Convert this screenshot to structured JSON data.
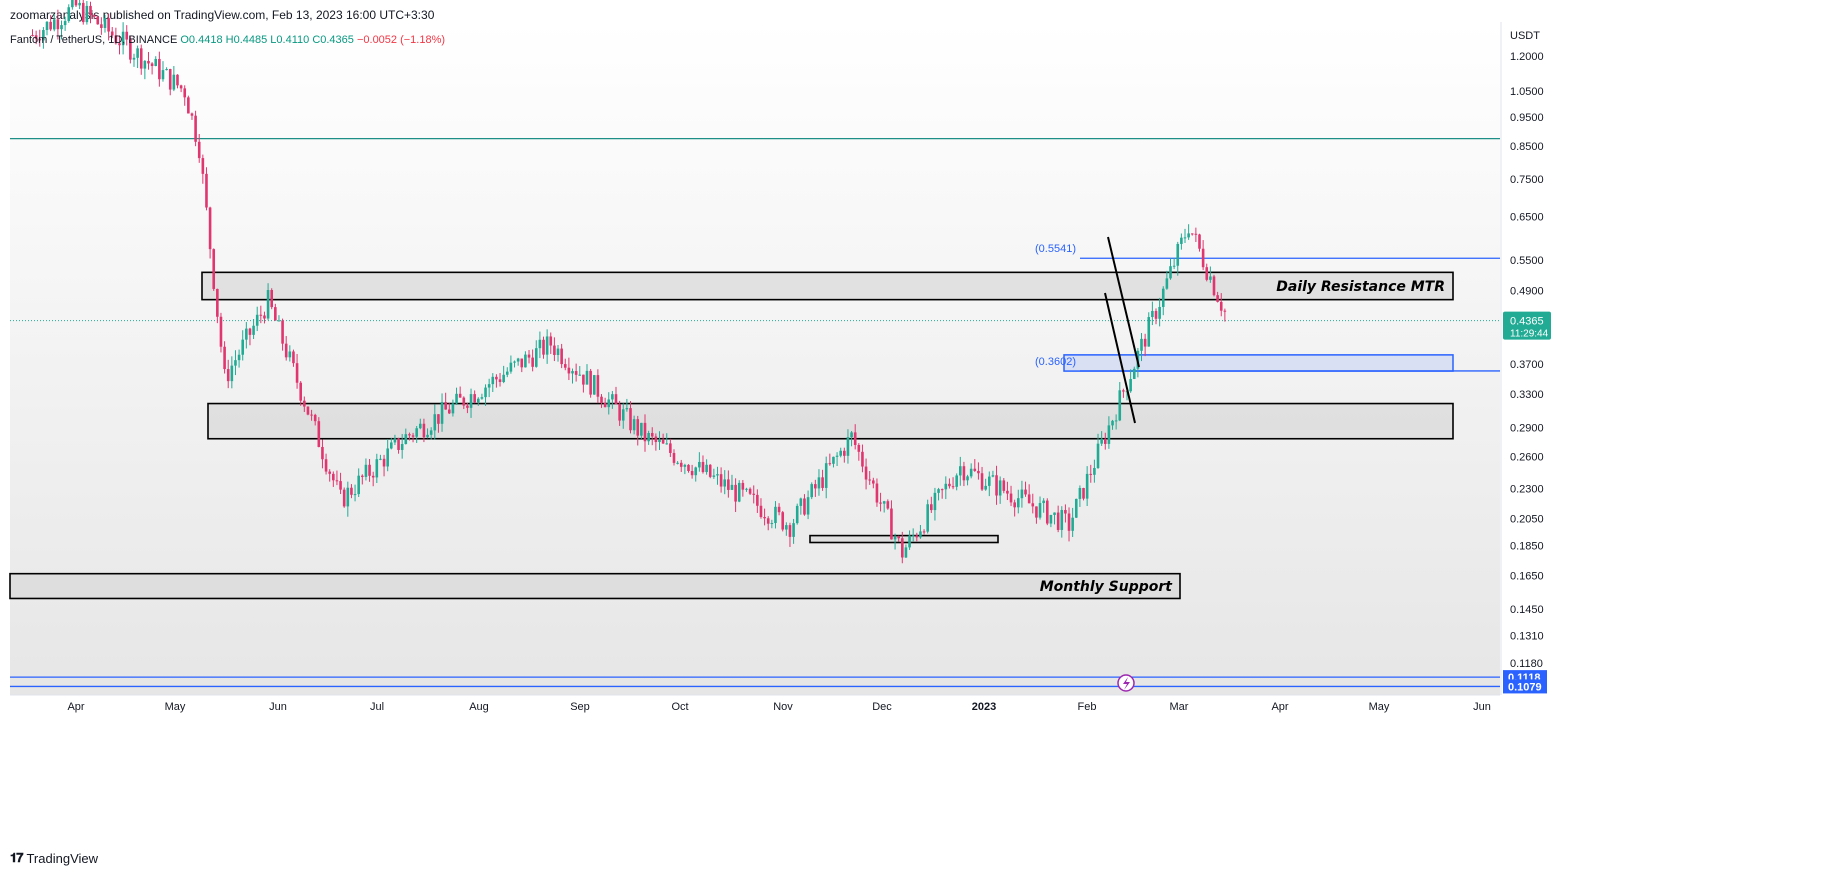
{
  "header": {
    "published_by": "zoomarzanalysis published on TradingView.com, Feb 13, 2023 16:00 UTC+3:30"
  },
  "legend": {
    "symbol": "Fantom / TetherUS, 1D, BINANCE",
    "open": "O0.4418",
    "high": "H0.4485",
    "low": "L0.4110",
    "close": "C0.4365",
    "change": "−0.0052 (−1.18%)"
  },
  "footer": {
    "brand": "TradingView"
  },
  "colors": {
    "up": "#22ab94",
    "down": "#e0356e",
    "teal_line": "#1d8f86",
    "blue_line": "#2962ff",
    "zone_fill": "#d9d9d9"
  },
  "chart_data": {
    "type": "candlestick",
    "symbol": "Fantom / TetherUS",
    "interval": "1D",
    "exchange": "BINANCE",
    "y_scale": "log",
    "y_unit": "USDT",
    "yticks": [
      "1.2000",
      "1.0500",
      "0.9500",
      "0.8500",
      "0.7500",
      "0.6500",
      "0.5500",
      "0.4900",
      "0.3700",
      "0.3300",
      "0.2900",
      "0.2600",
      "0.2300",
      "0.2050",
      "0.1850",
      "0.1650",
      "0.1450",
      "0.1310",
      "0.1180"
    ],
    "xticks": [
      "Apr",
      "May",
      "Jun",
      "Jul",
      "Aug",
      "Sep",
      "Oct",
      "Nov",
      "Dec",
      "2023",
      "Feb",
      "Mar",
      "Apr",
      "May",
      "Jun"
    ],
    "last_price": "0.4365",
    "countdown": "11:29:44",
    "price_badges": [
      "0.1118",
      "0.1079"
    ],
    "horizontal_lines": [
      {
        "price": 0.875,
        "color": "teal"
      },
      {
        "price": 0.5541,
        "color": "blue",
        "label": "(0.5541)"
      },
      {
        "price": 0.3602,
        "color": "blue",
        "label": "(0.3602)"
      },
      {
        "price": 0.1118,
        "color": "blue"
      },
      {
        "price": 0.1079,
        "color": "blue"
      }
    ],
    "zones": [
      {
        "label": "Daily Resistance MTR",
        "top": 0.525,
        "bottom": 0.473
      },
      {
        "label": "",
        "top": 0.318,
        "bottom": 0.278
      },
      {
        "label": "",
        "top": 0.192,
        "bottom": 0.187
      },
      {
        "label": "Monthly Support",
        "top": 0.166,
        "bottom": 0.151
      },
      {
        "label": "",
        "top": 0.383,
        "bottom": 0.36
      }
    ],
    "pattern": "falling wedge",
    "candles_approx": [
      {
        "date": "2022-03-20",
        "close": 1.3
      },
      {
        "date": "2022-04-01",
        "close": 1.45
      },
      {
        "date": "2022-04-15",
        "close": 1.25
      },
      {
        "date": "2022-05-01",
        "close": 1.05
      },
      {
        "date": "2022-05-05",
        "close": 0.85
      },
      {
        "date": "2022-05-12",
        "close": 0.35
      },
      {
        "date": "2022-05-24",
        "close": 0.47
      },
      {
        "date": "2022-06-13",
        "close": 0.22
      },
      {
        "date": "2022-07-01",
        "close": 0.28
      },
      {
        "date": "2022-08-10",
        "close": 0.4
      },
      {
        "date": "2022-09-05",
        "close": 0.28
      },
      {
        "date": "2022-10-01",
        "close": 0.225
      },
      {
        "date": "2022-10-15",
        "close": 0.2
      },
      {
        "date": "2022-11-01",
        "close": 0.28
      },
      {
        "date": "2022-11-15",
        "close": 0.18
      },
      {
        "date": "2022-12-01",
        "close": 0.25
      },
      {
        "date": "2022-12-31",
        "close": 0.2
      },
      {
        "date": "2023-01-25",
        "close": 0.47
      },
      {
        "date": "2023-02-02",
        "close": 0.63
      },
      {
        "date": "2023-02-13",
        "close": 0.4365
      }
    ]
  }
}
